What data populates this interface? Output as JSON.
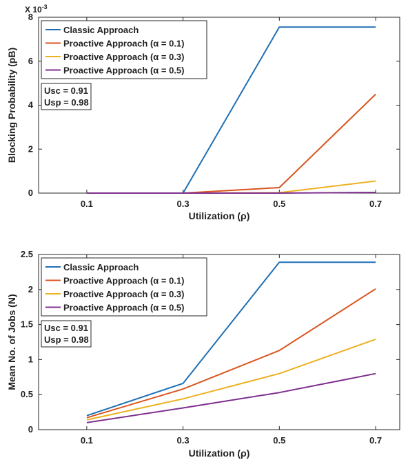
{
  "chart_data": [
    {
      "type": "line",
      "x": [
        0.1,
        0.3,
        0.5,
        0.7
      ],
      "xticks": [
        "0.1",
        "0.3",
        "0.5",
        "0.7"
      ],
      "xlim": [
        0.0,
        0.75
      ],
      "ylim": [
        0,
        8
      ],
      "yticks": [
        "0",
        "2",
        "4",
        "6",
        "8"
      ],
      "yticks_values": [
        0,
        2,
        4,
        6,
        8
      ],
      "y_exponent": "X 10",
      "y_exponent_power": "-3",
      "xlabel": "Utilization (ρ)",
      "ylabel": "Blocking Probability (pB)",
      "legend_position": "top-left",
      "grid": false,
      "series": [
        {
          "name": "Classic Approach",
          "color": "#1f6fb4",
          "values": [
            0,
            0,
            7.55,
            7.55
          ]
        },
        {
          "name": "Proactive Approach  (α = 0.1)",
          "color": "#d9541e",
          "values": [
            0,
            0,
            0.25,
            4.5
          ]
        },
        {
          "name": "Proactive Approach  (α = 0.3)",
          "color": "#edb120",
          "values": [
            0,
            0,
            0.02,
            0.55
          ]
        },
        {
          "name": "Proactive Approach  (α = 0.5)",
          "color": "#7e2f8e",
          "values": [
            0,
            0,
            0,
            0.03
          ]
        }
      ],
      "annotation": [
        "Usc = 0.91",
        "Usp = 0.98"
      ]
    },
    {
      "type": "line",
      "x": [
        0.1,
        0.3,
        0.5,
        0.7
      ],
      "xticks": [
        "0.1",
        "0.3",
        "0.5",
        "0.7"
      ],
      "xlim": [
        0.0,
        0.75
      ],
      "ylim": [
        0,
        2.5
      ],
      "yticks": [
        "0",
        "0.5",
        "1",
        "1.5",
        "2",
        "2.5"
      ],
      "yticks_values": [
        0,
        0.5,
        1,
        1.5,
        2,
        2.5
      ],
      "xlabel": "Utilization (ρ)",
      "ylabel": "Mean No. of Jobs (N)",
      "legend_position": "top-left",
      "grid": false,
      "series": [
        {
          "name": "Classic Approach",
          "color": "#1f6fb4",
          "values": [
            0.2,
            0.66,
            2.39,
            2.39
          ]
        },
        {
          "name": "Proactive Approach  (α = 0.1)",
          "color": "#d9541e",
          "values": [
            0.17,
            0.58,
            1.13,
            2.01
          ]
        },
        {
          "name": "Proactive Approach  (α = 0.3)",
          "color": "#edb120",
          "values": [
            0.14,
            0.44,
            0.8,
            1.29
          ]
        },
        {
          "name": "Proactive Approach  (α = 0.5)",
          "color": "#7e2f8e",
          "values": [
            0.1,
            0.31,
            0.53,
            0.8
          ]
        }
      ],
      "annotation": [
        "Usc = 0.91",
        "Usp = 0.98"
      ]
    }
  ]
}
